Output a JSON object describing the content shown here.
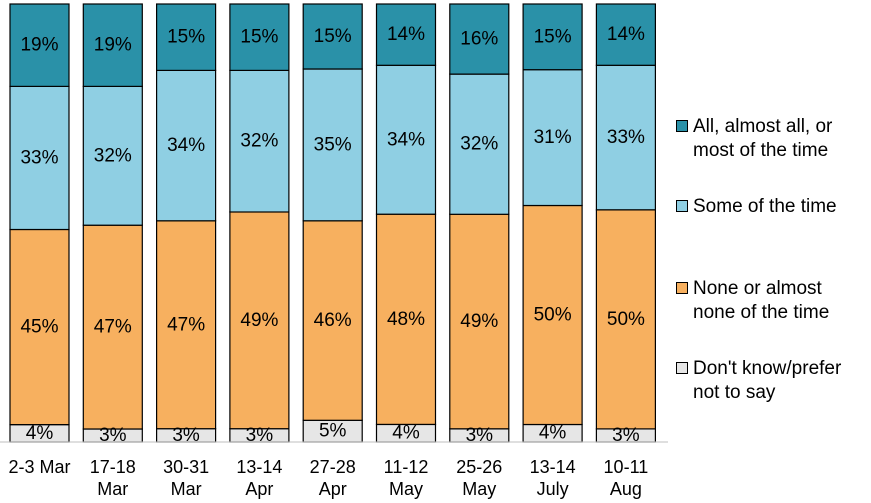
{
  "chart_data": {
    "type": "bar",
    "stacked": true,
    "categories": [
      "2-3 Mar",
      "17-18 Mar",
      "30-31 Mar",
      "13-14 Apr",
      "27-28 Apr",
      "11-12 May",
      "25-26 May",
      "13-14 July",
      "10-11 Aug"
    ],
    "category_lines": [
      [
        "2-3 Mar"
      ],
      [
        "17-18",
        "Mar"
      ],
      [
        "30-31",
        "Mar"
      ],
      [
        "13-14",
        "Apr"
      ],
      [
        "27-28",
        "Apr"
      ],
      [
        "11-12",
        "May"
      ],
      [
        "25-26",
        "May"
      ],
      [
        "13-14",
        "July"
      ],
      [
        "10-11",
        "Aug"
      ]
    ],
    "series": [
      {
        "name": "Don't know/prefer not to say",
        "color": "#e6e6e6",
        "values": [
          4,
          3,
          3,
          3,
          5,
          4,
          3,
          4,
          3
        ]
      },
      {
        "name": "None or almost none of the time",
        "color": "#f7b05f",
        "values": [
          45,
          47,
          47,
          49,
          46,
          48,
          49,
          50,
          50
        ]
      },
      {
        "name": "Some of the time",
        "color": "#8fcfe3",
        "values": [
          33,
          32,
          34,
          32,
          35,
          34,
          32,
          31,
          33
        ]
      },
      {
        "name": "All, almost all, or most of the time",
        "color": "#2a91a8",
        "values": [
          19,
          19,
          15,
          15,
          15,
          14,
          16,
          15,
          14
        ]
      }
    ],
    "data_label_suffix": "%",
    "legend_placement": "right",
    "grid": false
  },
  "legend": [
    {
      "lines": [
        "All, almost all, or",
        "most of the time"
      ],
      "color": "#2a91a8"
    },
    {
      "lines": [
        "Some of the time"
      ],
      "color": "#8fcfe3"
    },
    {
      "lines": [
        "None or almost",
        "none of the time"
      ],
      "color": "#f7b05f"
    },
    {
      "lines": [
        "Don't know/prefer",
        "not to say"
      ],
      "color": "#e6e6e6"
    }
  ]
}
